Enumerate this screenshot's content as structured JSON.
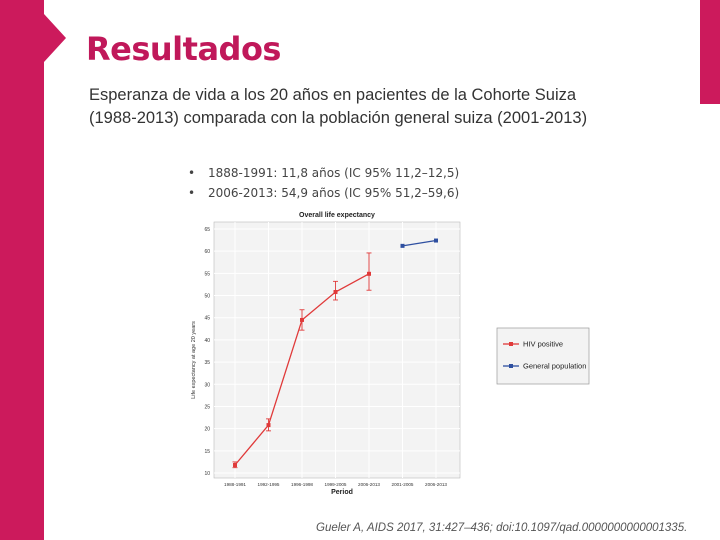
{
  "slide": {
    "title": "Resultados",
    "subtitle_line1": "Esperanza de vida a los 20 años en pacientes de la Cohorte Suiza",
    "subtitle_line2": "(1988-2013)  comparada con la población general suiza  (2001-2013)",
    "bullets": [
      "1888-1991: 11,8 años  (IC 95% 11,2–12,5)",
      "2006-2013:  54,9 años  (IC 95% 51,2–59,6)"
    ],
    "citation": "Gueler A, AIDS 2017, 31:427–436; doi:10.1097/qad.0000000000001335."
  },
  "colors": {
    "accent": "#cc1a5c",
    "hiv_series": "#e03a3a",
    "general_series": "#2e4fa0"
  },
  "chart_data": {
    "type": "line",
    "title": "Overall life expectancy",
    "xlabel": "Period",
    "ylabel": "Life expectancy at age 20 years",
    "categories": [
      "1988-1991",
      "1992-1995",
      "1996-1998",
      "1999-2005",
      "2006-2013",
      "2001-2005",
      "2006-2013"
    ],
    "ylim": [
      10,
      65
    ],
    "yticks": [
      10,
      15,
      20,
      25,
      30,
      35,
      40,
      45,
      50,
      55,
      60,
      65
    ],
    "grid": true,
    "legend_position": "right",
    "series": [
      {
        "name": "HIV positive",
        "color": "#e03a3a",
        "values": [
          11.8,
          20.8,
          44.5,
          50.8,
          54.9,
          null,
          null
        ],
        "ci_low": [
          11.2,
          19.5,
          42.2,
          49.0,
          51.2,
          null,
          null
        ],
        "ci_high": [
          12.5,
          22.2,
          46.8,
          53.2,
          59.6,
          null,
          null
        ]
      },
      {
        "name": "General population",
        "color": "#2e4fa0",
        "values": [
          null,
          null,
          null,
          null,
          null,
          61.2,
          62.4
        ]
      }
    ]
  }
}
